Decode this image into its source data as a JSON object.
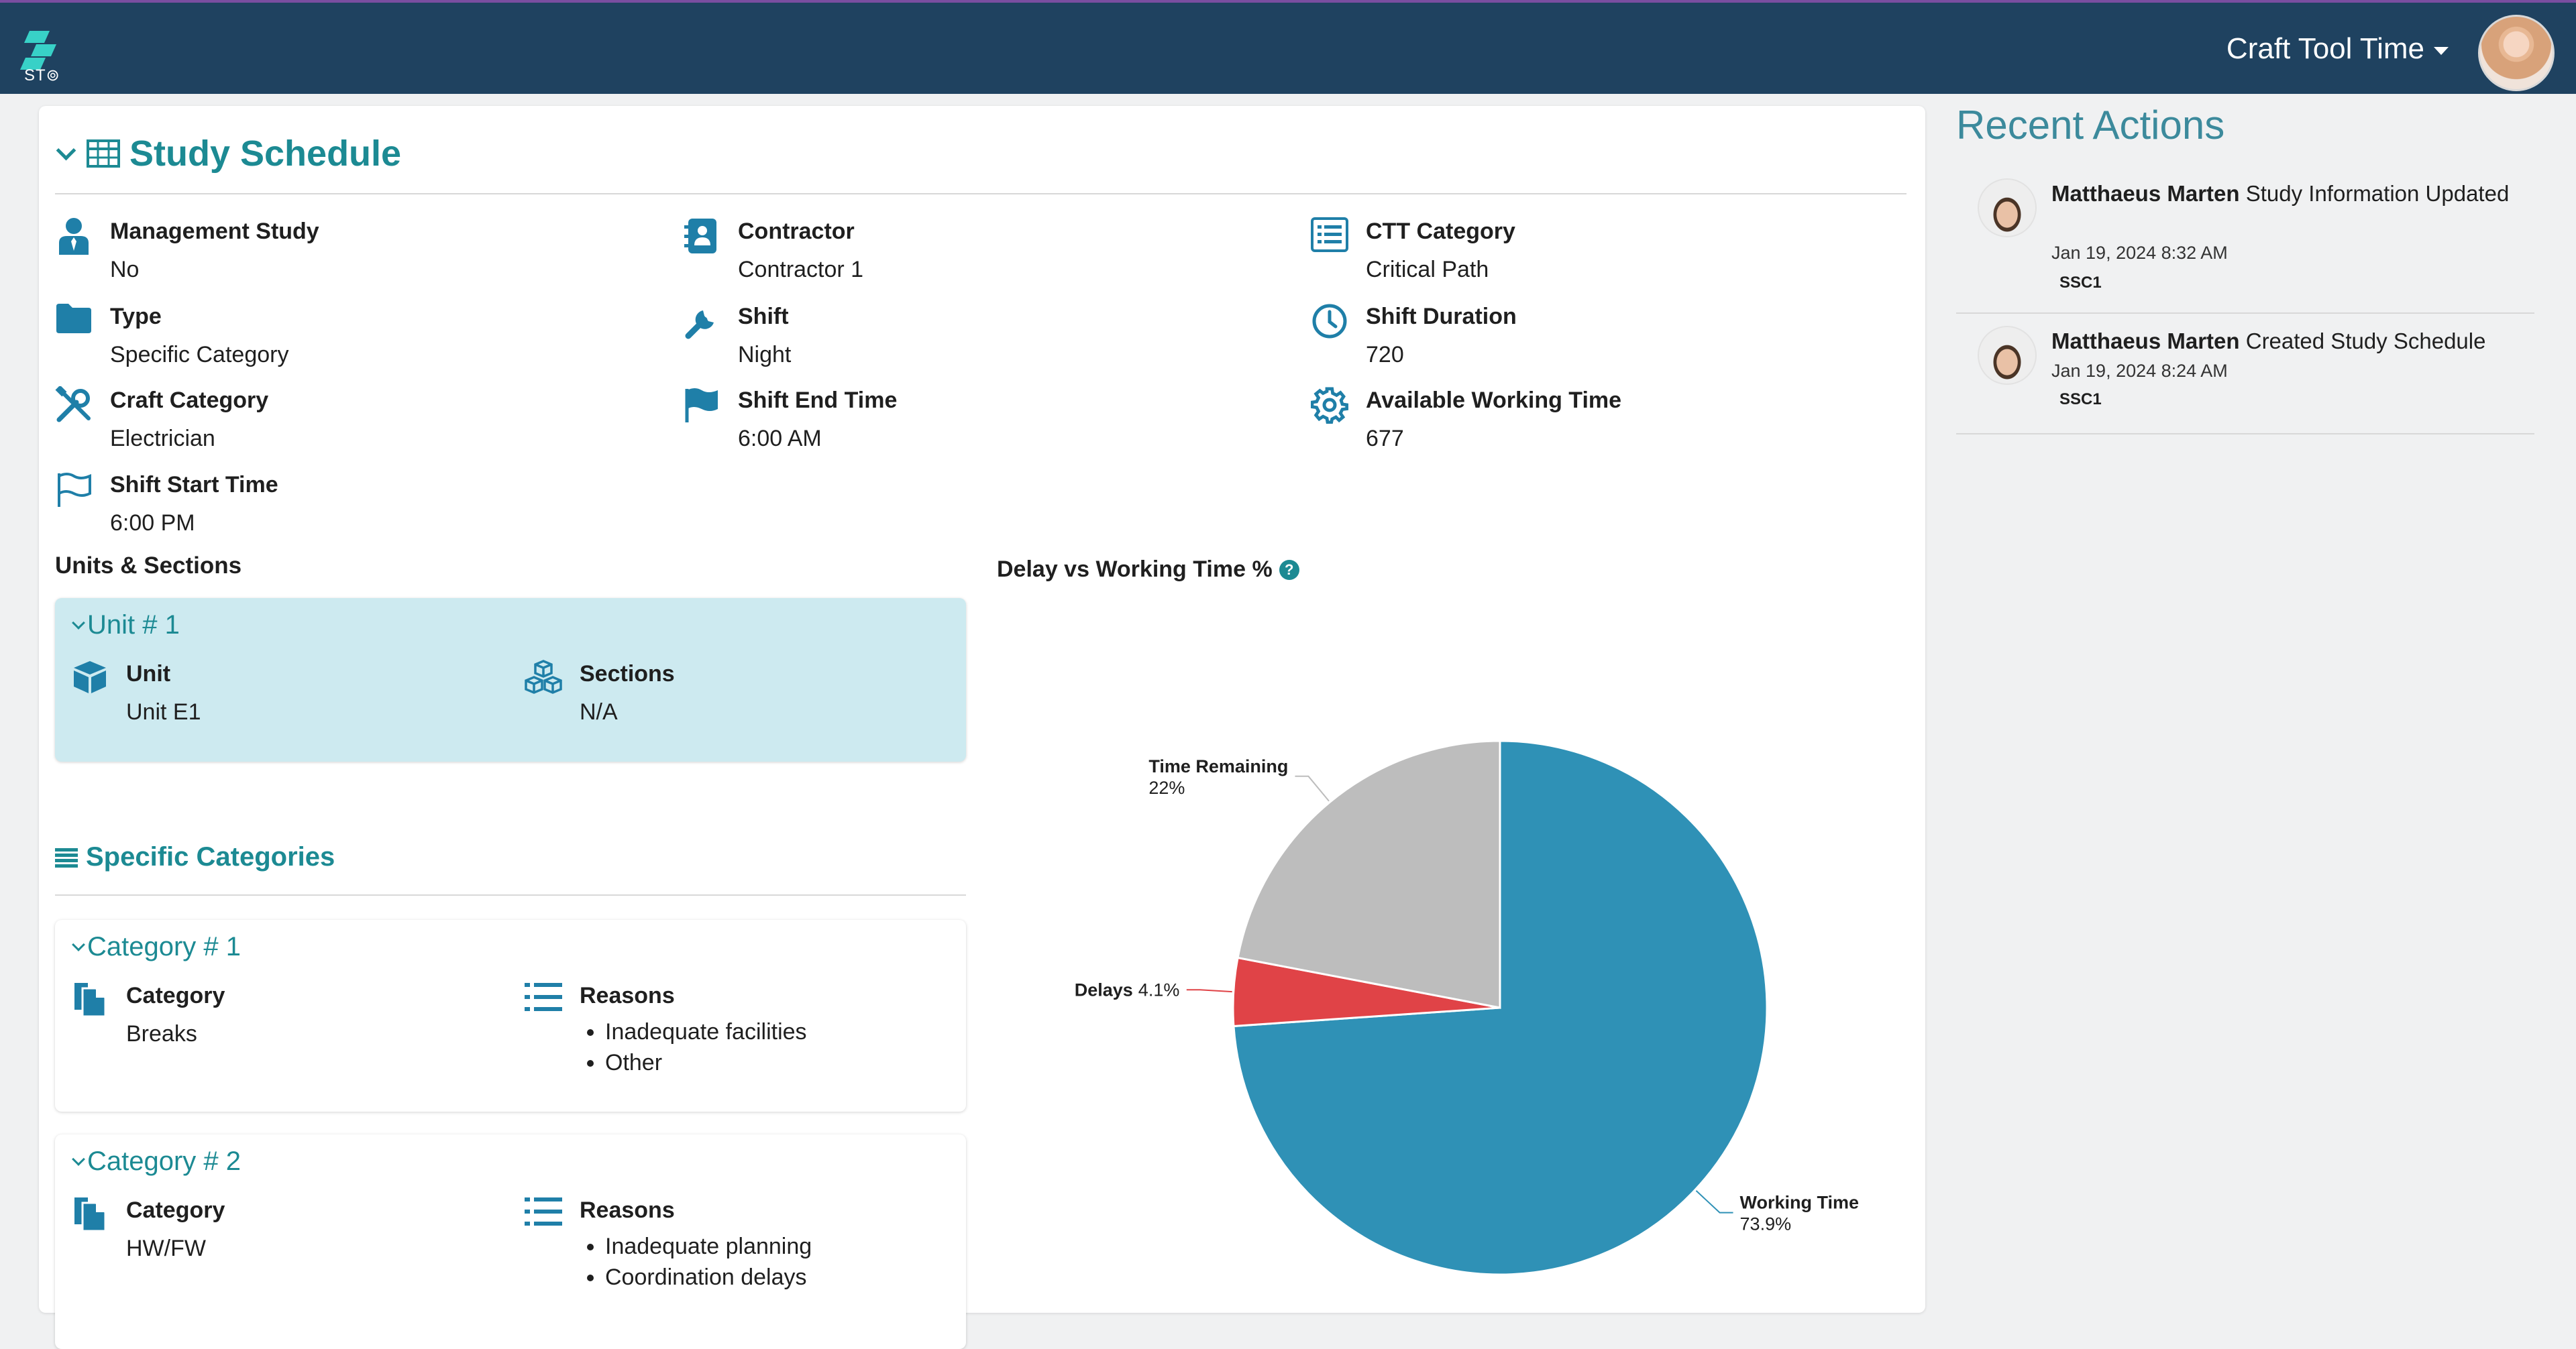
{
  "header": {
    "logo_text": "ST⊚",
    "app_title": "Craft Tool Time"
  },
  "study": {
    "title": "Study Schedule",
    "fields": {
      "management_study": {
        "label": "Management Study",
        "value": "No"
      },
      "type": {
        "label": "Type",
        "value": "Specific Category"
      },
      "craft_category": {
        "label": "Craft Category",
        "value": "Electrician"
      },
      "shift_start_time": {
        "label": "Shift Start Time",
        "value": "6:00 PM"
      },
      "contractor": {
        "label": "Contractor",
        "value": "Contractor 1"
      },
      "shift": {
        "label": "Shift",
        "value": "Night"
      },
      "shift_end_time": {
        "label": "Shift End Time",
        "value": "6:00 AM"
      },
      "ctt_category": {
        "label": "CTT Category",
        "value": "Critical Path"
      },
      "shift_duration": {
        "label": "Shift Duration",
        "value": "720"
      },
      "available_working_time": {
        "label": "Available Working Time",
        "value": "677"
      }
    }
  },
  "units": {
    "heading": "Units & Sections",
    "unit1": {
      "title": "Unit # 1",
      "unit_label": "Unit",
      "unit_value": "Unit E1",
      "sections_label": "Sections",
      "sections_value": "N/A"
    }
  },
  "categories": {
    "heading": "Specific Categories",
    "cat1": {
      "title": "Category # 1",
      "category_label": "Category",
      "category_value": "Breaks",
      "reasons_label": "Reasons",
      "reasons": [
        "Inadequate facilities",
        "Other"
      ]
    },
    "cat2": {
      "title": "Category # 2",
      "category_label": "Category",
      "category_value": "HW/FW",
      "reasons_label": "Reasons",
      "reasons": [
        "Inadequate planning",
        "Coordination delays"
      ]
    }
  },
  "chart_data": {
    "type": "pie",
    "title": "Delay vs Working Time %",
    "slices": [
      {
        "label": "Working Time",
        "value": 73.9,
        "display": "73.9%",
        "color": "#2f91b6"
      },
      {
        "label": "Delays",
        "value": 4.1,
        "display": "4.1%",
        "color": "#e04347"
      },
      {
        "label": "Time Remaining",
        "value": 22,
        "display": "22%",
        "color": "#bdbdbd"
      }
    ]
  },
  "recent": {
    "title": "Recent Actions",
    "items": [
      {
        "user": "Matthaeus Marten",
        "action": "Study Information Updated",
        "date": "Jan 19, 2024 8:32 AM",
        "tag": "SSC1"
      },
      {
        "user": "Matthaeus Marten",
        "action": "Created Study Schedule",
        "date": "Jan 19, 2024 8:24 AM",
        "tag": "SSC1"
      }
    ]
  }
}
